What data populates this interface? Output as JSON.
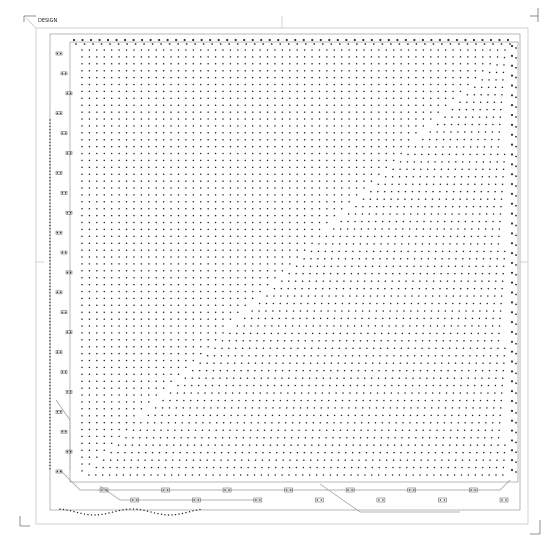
{
  "drawing": {
    "title_mark": "DESIGN",
    "grid_levels": 58,
    "top_pin_count": 52,
    "right_pin_count": 44,
    "left_components": 22,
    "bottom_components": 14,
    "colors": {
      "background": "#ffffff",
      "frame": "#c8c8c8",
      "board": "#9a9a9a",
      "pins": "#222222",
      "labels": "#333333"
    }
  }
}
